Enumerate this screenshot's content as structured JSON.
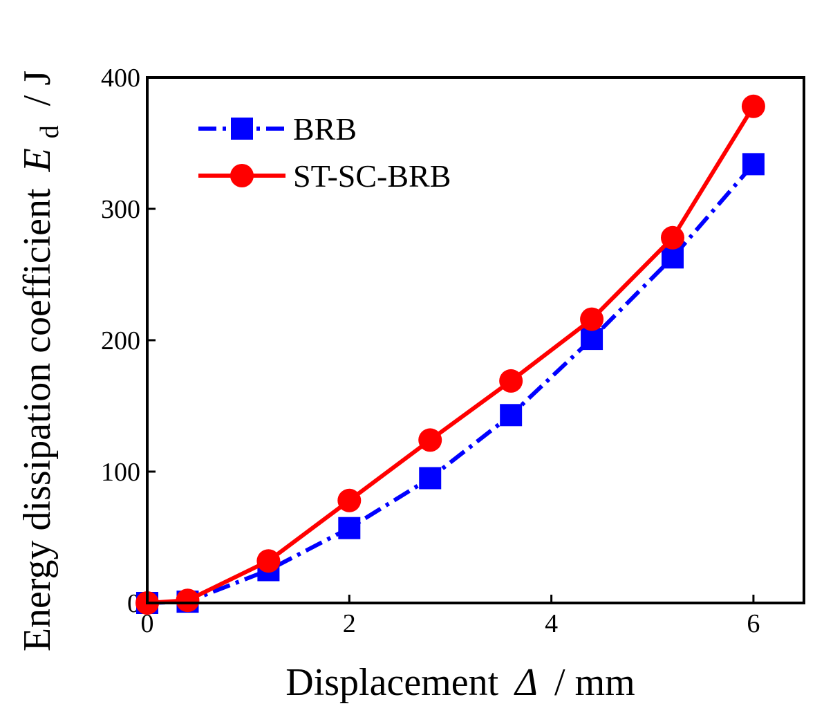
{
  "chart_data": {
    "type": "line",
    "title": "",
    "xlabel": "Displacement",
    "xlabel_symbol": "Δ",
    "xlabel_unit": "/ mm",
    "ylabel": "Energy dissipation coefficient",
    "ylabel_symbol": "E",
    "ylabel_subscript": "d",
    "ylabel_unit": "/ J",
    "xlim": [
      0,
      6.5
    ],
    "ylim": [
      0,
      400
    ],
    "xticks": [
      0,
      2,
      4,
      6
    ],
    "yticks": [
      0,
      100,
      200,
      300,
      400
    ],
    "legend_position": "top-left",
    "series": [
      {
        "name": "BRB",
        "color": "#0000ff",
        "marker": "square",
        "line_style": "dash-dot",
        "x": [
          0,
          0.4,
          1.2,
          2.0,
          2.8,
          3.6,
          4.4,
          5.2,
          6.0
        ],
        "values": [
          0,
          1,
          25,
          57,
          95,
          143,
          201,
          263,
          334
        ]
      },
      {
        "name": "ST-SC-BRB",
        "color": "#ff0000",
        "marker": "circle",
        "line_style": "solid",
        "x": [
          0,
          0.4,
          1.2,
          2.0,
          2.8,
          3.6,
          4.4,
          5.2,
          6.0
        ],
        "values": [
          0,
          2,
          32,
          78,
          124,
          169,
          216,
          278,
          378
        ]
      }
    ]
  }
}
